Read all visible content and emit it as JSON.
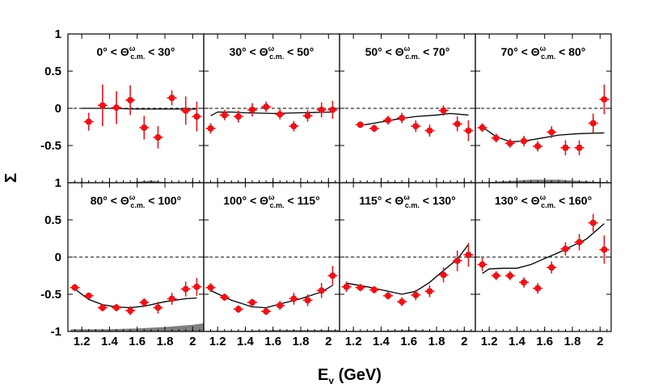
{
  "figure": {
    "xlabel_main": "E",
    "xlabel_sub": "γ",
    "xlabel_unit": " (GeV)",
    "ylabel": "Σ"
  },
  "chart_data": {
    "type": "scatter",
    "grid": false,
    "layout_rows": 2,
    "layout_cols": 4,
    "xlim": [
      1.1,
      2.08
    ],
    "ylim": [
      -1,
      1
    ],
    "x_ticks": [
      1.2,
      1.4,
      1.6,
      1.8,
      2
    ],
    "x_tick_labels": [
      "1.2",
      "1.4",
      "1.6",
      "1.8",
      "2"
    ],
    "y_ticks": [
      -1,
      -0.5,
      0,
      0.5,
      1
    ],
    "y_tick_labels": [
      "-1",
      "-0.5",
      "0",
      "0.5",
      "1"
    ],
    "point_color": "#e8141a",
    "curve_color": "#000000",
    "band_color": "#808080",
    "panels": [
      {
        "title_lo": "0° < Θ",
        "title_sup": "ω",
        "title_sub": "c.m.",
        "title_hi": " < 30°",
        "points": [
          {
            "x": 1.25,
            "y": -0.18,
            "yerr": 0.12
          },
          {
            "x": 1.35,
            "y": 0.04,
            "yerr": 0.28
          },
          {
            "x": 1.45,
            "y": 0.01,
            "yerr": 0.22
          },
          {
            "x": 1.55,
            "y": 0.11,
            "yerr": 0.2
          },
          {
            "x": 1.65,
            "y": -0.26,
            "yerr": 0.16
          },
          {
            "x": 1.75,
            "y": -0.39,
            "yerr": 0.15
          },
          {
            "x": 1.85,
            "y": 0.14,
            "yerr": 0.1
          },
          {
            "x": 1.95,
            "y": -0.03,
            "yerr": 0.19
          },
          {
            "x": 2.03,
            "y": -0.11,
            "yerr": 0.2
          }
        ],
        "curve": [
          [
            1.2,
            0.0
          ],
          [
            1.4,
            0.0
          ],
          [
            1.6,
            -0.01
          ],
          [
            1.8,
            -0.01
          ],
          [
            2.03,
            -0.01
          ]
        ],
        "band": [
          [
            1.15,
            0.0
          ],
          [
            1.5,
            0.0
          ],
          [
            1.65,
            0.02
          ],
          [
            1.7,
            0.03
          ],
          [
            1.78,
            0.01
          ],
          [
            1.9,
            0.0
          ],
          [
            2.08,
            0.0
          ]
        ]
      },
      {
        "title_lo": "30° < Θ",
        "title_sup": "ω",
        "title_sub": "c.m.",
        "title_hi": " < 50°",
        "points": [
          {
            "x": 1.15,
            "y": -0.27,
            "yerr": 0.07
          },
          {
            "x": 1.25,
            "y": -0.09,
            "yerr": 0.07
          },
          {
            "x": 1.35,
            "y": -0.11,
            "yerr": 0.08
          },
          {
            "x": 1.45,
            "y": -0.02,
            "yerr": 0.09
          },
          {
            "x": 1.55,
            "y": 0.02,
            "yerr": 0.07
          },
          {
            "x": 1.65,
            "y": -0.08,
            "yerr": 0.07
          },
          {
            "x": 1.75,
            "y": -0.24,
            "yerr": 0.07
          },
          {
            "x": 1.85,
            "y": -0.1,
            "yerr": 0.08
          },
          {
            "x": 1.95,
            "y": -0.02,
            "yerr": 0.1
          },
          {
            "x": 2.03,
            "y": -0.02,
            "yerr": 0.12
          }
        ],
        "curve": [
          [
            1.15,
            -0.1
          ],
          [
            1.2,
            -0.05
          ],
          [
            1.3,
            -0.05
          ],
          [
            1.4,
            -0.06
          ],
          [
            1.6,
            -0.07
          ],
          [
            1.8,
            -0.06
          ],
          [
            2.03,
            -0.05
          ]
        ],
        "band": [
          [
            1.12,
            0.0
          ],
          [
            1.3,
            0.0
          ],
          [
            1.6,
            0.01
          ],
          [
            1.8,
            0.0
          ],
          [
            2.08,
            0.0
          ]
        ]
      },
      {
        "title_lo": "50° < Θ",
        "title_sup": "ω",
        "title_sub": "c.m.",
        "title_hi": " < 70°",
        "points": [
          {
            "x": 1.25,
            "y": -0.22,
            "yerr": 0.04
          },
          {
            "x": 1.35,
            "y": -0.27,
            "yerr": 0.05
          },
          {
            "x": 1.45,
            "y": -0.16,
            "yerr": 0.06
          },
          {
            "x": 1.55,
            "y": -0.13,
            "yerr": 0.07
          },
          {
            "x": 1.65,
            "y": -0.24,
            "yerr": 0.08
          },
          {
            "x": 1.75,
            "y": -0.3,
            "yerr": 0.08
          },
          {
            "x": 1.85,
            "y": -0.03,
            "yerr": 0.07
          },
          {
            "x": 1.95,
            "y": -0.21,
            "yerr": 0.1
          },
          {
            "x": 2.03,
            "y": -0.3,
            "yerr": 0.14
          }
        ],
        "curve": [
          [
            1.25,
            -0.23
          ],
          [
            1.35,
            -0.2
          ],
          [
            1.5,
            -0.15
          ],
          [
            1.65,
            -0.11
          ],
          [
            1.8,
            -0.09
          ],
          [
            1.9,
            -0.07
          ],
          [
            2.03,
            -0.09
          ]
        ],
        "band": [
          [
            1.12,
            0.0
          ],
          [
            1.3,
            0.0
          ],
          [
            1.5,
            0.01
          ],
          [
            1.7,
            0.0
          ],
          [
            2.08,
            0.0
          ]
        ]
      },
      {
        "title_lo": "70° < Θ",
        "title_sup": "ω",
        "title_sub": "c.m.",
        "title_hi": " < 80°",
        "points": [
          {
            "x": 1.15,
            "y": -0.26,
            "yerr": 0.06
          },
          {
            "x": 1.25,
            "y": -0.4,
            "yerr": 0.06
          },
          {
            "x": 1.35,
            "y": -0.47,
            "yerr": 0.06
          },
          {
            "x": 1.45,
            "y": -0.44,
            "yerr": 0.07
          },
          {
            "x": 1.55,
            "y": -0.51,
            "yerr": 0.07
          },
          {
            "x": 1.65,
            "y": -0.32,
            "yerr": 0.08
          },
          {
            "x": 1.75,
            "y": -0.53,
            "yerr": 0.1
          },
          {
            "x": 1.85,
            "y": -0.53,
            "yerr": 0.1
          },
          {
            "x": 1.95,
            "y": -0.2,
            "yerr": 0.13
          },
          {
            "x": 2.03,
            "y": 0.12,
            "yerr": 0.2
          }
        ],
        "curve": [
          [
            1.15,
            -0.25
          ],
          [
            1.25,
            -0.38
          ],
          [
            1.35,
            -0.45
          ],
          [
            1.45,
            -0.44
          ],
          [
            1.55,
            -0.41
          ],
          [
            1.7,
            -0.36
          ],
          [
            1.85,
            -0.34
          ],
          [
            2.03,
            -0.33
          ]
        ],
        "band": [
          [
            1.12,
            0.0
          ],
          [
            1.3,
            0.02
          ],
          [
            1.5,
            0.04
          ],
          [
            1.7,
            0.04
          ],
          [
            1.9,
            0.02
          ],
          [
            2.08,
            0.0
          ]
        ]
      },
      {
        "title_lo": "80° < Θ",
        "title_sup": "ω",
        "title_sub": "c.m.",
        "title_hi": " < 100°",
        "points": [
          {
            "x": 1.15,
            "y": -0.41,
            "yerr": 0.05
          },
          {
            "x": 1.25,
            "y": -0.52,
            "yerr": 0.04
          },
          {
            "x": 1.35,
            "y": -0.68,
            "yerr": 0.05
          },
          {
            "x": 1.45,
            "y": -0.68,
            "yerr": 0.05
          },
          {
            "x": 1.55,
            "y": -0.72,
            "yerr": 0.06
          },
          {
            "x": 1.65,
            "y": -0.61,
            "yerr": 0.06
          },
          {
            "x": 1.75,
            "y": -0.68,
            "yerr": 0.08
          },
          {
            "x": 1.85,
            "y": -0.56,
            "yerr": 0.08
          },
          {
            "x": 1.95,
            "y": -0.43,
            "yerr": 0.1
          },
          {
            "x": 2.03,
            "y": -0.4,
            "yerr": 0.12
          }
        ],
        "curve": [
          [
            1.15,
            -0.43
          ],
          [
            1.25,
            -0.57
          ],
          [
            1.35,
            -0.64
          ],
          [
            1.45,
            -0.67
          ],
          [
            1.55,
            -0.68
          ],
          [
            1.65,
            -0.66
          ],
          [
            1.8,
            -0.6
          ],
          [
            1.95,
            -0.56
          ],
          [
            2.03,
            -0.55
          ]
        ],
        "band": [
          [
            1.12,
            0.03
          ],
          [
            1.4,
            0.03
          ],
          [
            1.6,
            0.04
          ],
          [
            1.8,
            0.06
          ],
          [
            2.0,
            0.09
          ],
          [
            2.08,
            0.11
          ]
        ]
      },
      {
        "title_lo": "100° < Θ",
        "title_sup": "ω",
        "title_sub": "c.m.",
        "title_hi": " < 115°",
        "points": [
          {
            "x": 1.15,
            "y": -0.41,
            "yerr": 0.06
          },
          {
            "x": 1.25,
            "y": -0.54,
            "yerr": 0.05
          },
          {
            "x": 1.35,
            "y": -0.7,
            "yerr": 0.05
          },
          {
            "x": 1.45,
            "y": -0.61,
            "yerr": 0.05
          },
          {
            "x": 1.55,
            "y": -0.73,
            "yerr": 0.05
          },
          {
            "x": 1.65,
            "y": -0.65,
            "yerr": 0.06
          },
          {
            "x": 1.75,
            "y": -0.56,
            "yerr": 0.08
          },
          {
            "x": 1.85,
            "y": -0.58,
            "yerr": 0.08
          },
          {
            "x": 1.95,
            "y": -0.45,
            "yerr": 0.1
          },
          {
            "x": 2.03,
            "y": -0.25,
            "yerr": 0.13
          }
        ],
        "curve": [
          [
            1.15,
            -0.45
          ],
          [
            1.3,
            -0.58
          ],
          [
            1.45,
            -0.67
          ],
          [
            1.55,
            -0.68
          ],
          [
            1.65,
            -0.63
          ],
          [
            1.8,
            -0.56
          ],
          [
            1.95,
            -0.47
          ],
          [
            2.03,
            -0.38
          ]
        ],
        "band": [
          [
            1.12,
            0.01
          ],
          [
            1.4,
            0.01
          ],
          [
            1.6,
            0.02
          ],
          [
            1.8,
            0.02
          ],
          [
            2.08,
            0.02
          ]
        ]
      },
      {
        "title_lo": "115° < Θ",
        "title_sup": "ω",
        "title_sub": "c.m.",
        "title_hi": " < 130°",
        "points": [
          {
            "x": 1.15,
            "y": -0.4,
            "yerr": 0.07
          },
          {
            "x": 1.25,
            "y": -0.41,
            "yerr": 0.05
          },
          {
            "x": 1.35,
            "y": -0.44,
            "yerr": 0.05
          },
          {
            "x": 1.45,
            "y": -0.52,
            "yerr": 0.05
          },
          {
            "x": 1.55,
            "y": -0.6,
            "yerr": 0.06
          },
          {
            "x": 1.65,
            "y": -0.51,
            "yerr": 0.07
          },
          {
            "x": 1.75,
            "y": -0.46,
            "yerr": 0.08
          },
          {
            "x": 1.85,
            "y": -0.24,
            "yerr": 0.1
          },
          {
            "x": 1.95,
            "y": -0.05,
            "yerr": 0.14
          },
          {
            "x": 2.03,
            "y": 0.03,
            "yerr": 0.16
          }
        ],
        "curve": [
          [
            1.15,
            -0.35
          ],
          [
            1.3,
            -0.4
          ],
          [
            1.45,
            -0.46
          ],
          [
            1.55,
            -0.5
          ],
          [
            1.65,
            -0.46
          ],
          [
            1.75,
            -0.34
          ],
          [
            1.85,
            -0.18
          ],
          [
            1.95,
            -0.03
          ],
          [
            2.03,
            0.17
          ]
        ],
        "band": [
          [
            1.12,
            0.01
          ],
          [
            1.4,
            0.01
          ],
          [
            1.6,
            0.02
          ],
          [
            1.8,
            0.01
          ],
          [
            2.08,
            0.01
          ]
        ]
      },
      {
        "title_lo": "130° < Θ",
        "title_sup": "ω",
        "title_sub": "c.m.",
        "title_hi": " < 160°",
        "points": [
          {
            "x": 1.15,
            "y": -0.1,
            "yerr": 0.09
          },
          {
            "x": 1.25,
            "y": -0.25,
            "yerr": 0.06
          },
          {
            "x": 1.35,
            "y": -0.25,
            "yerr": 0.06
          },
          {
            "x": 1.45,
            "y": -0.34,
            "yerr": 0.07
          },
          {
            "x": 1.55,
            "y": -0.42,
            "yerr": 0.07
          },
          {
            "x": 1.65,
            "y": -0.14,
            "yerr": 0.08
          },
          {
            "x": 1.75,
            "y": 0.11,
            "yerr": 0.09
          },
          {
            "x": 1.85,
            "y": 0.2,
            "yerr": 0.11
          },
          {
            "x": 1.95,
            "y": 0.46,
            "yerr": 0.12
          },
          {
            "x": 2.03,
            "y": 0.1,
            "yerr": 0.19
          }
        ],
        "curve": [
          [
            1.15,
            -0.22
          ],
          [
            1.2,
            -0.16
          ],
          [
            1.3,
            -0.15
          ],
          [
            1.4,
            -0.15
          ],
          [
            1.5,
            -0.1
          ],
          [
            1.6,
            -0.02
          ],
          [
            1.7,
            0.06
          ],
          [
            1.8,
            0.15
          ],
          [
            1.9,
            0.24
          ],
          [
            2.03,
            0.45
          ]
        ],
        "band": [
          [
            1.12,
            0.0
          ],
          [
            1.5,
            0.0
          ],
          [
            1.8,
            0.0
          ],
          [
            2.08,
            0.0
          ]
        ]
      }
    ]
  }
}
